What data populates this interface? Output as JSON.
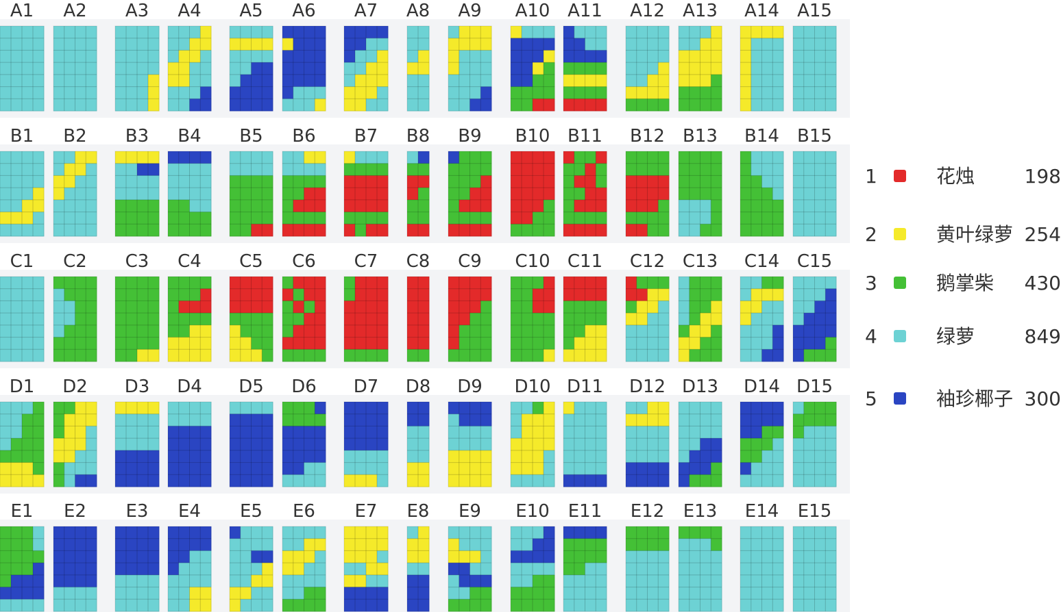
{
  "colors": {
    "1": "#e32a2a",
    "2": "#f5ea2a",
    "3": "#44c036",
    "4": "#6dd2d4",
    "5": "#2a45c2",
    "grid_line": "#58b8bb",
    "band": "#f3f4f6"
  },
  "legend": [
    {
      "code": "1",
      "name": "花烛",
      "count": "198"
    },
    {
      "code": "2",
      "name": "黄叶绿萝",
      "count": "254"
    },
    {
      "code": "3",
      "name": "鹅掌柴",
      "count": "430"
    },
    {
      "code": "4",
      "name": "绿萝",
      "count": "849"
    },
    {
      "code": "5",
      "name": "袖珍椰子",
      "count": "300"
    }
  ],
  "panels": {
    "A1": [
      "4444",
      "4444",
      "4444",
      "4444",
      "4444",
      "4444",
      "4444"
    ],
    "A2": [
      "4444",
      "4444",
      "4444",
      "4444",
      "4444",
      "4444",
      "4444"
    ],
    "A3": [
      "4444",
      "4444",
      "4444",
      "4444",
      "4442",
      "4442",
      "4442"
    ],
    "A4": [
      "4442",
      "4422",
      "4224",
      "2244",
      "2244",
      "4445",
      "4455"
    ],
    "A5": [
      "4444",
      "2222",
      "4444",
      "4455",
      "4555",
      "5555",
      "5555"
    ],
    "A6": [
      "5555",
      "2555",
      "5555",
      "5555",
      "5555",
      "5444",
      "4442"
    ],
    "A7": [
      "5555",
      "5544",
      "5442",
      "4422",
      "4222",
      "2224",
      "2244"
    ],
    "A8": [
      "44",
      "44",
      "42",
      "22",
      "44",
      "44",
      "44"
    ],
    "A9": [
      "4222",
      "2222",
      "2444",
      "2444",
      "4444",
      "4445",
      "4455"
    ],
    "A10": [
      "2444",
      "5555",
      "5552",
      "5523",
      "5533",
      "3333",
      "3311"
    ],
    "A11": [
      "5444",
      "5544",
      "5555",
      "3333",
      "2222",
      "3333",
      "1111"
    ],
    "A12": [
      "4444",
      "4444",
      "4444",
      "4442",
      "4422",
      "2222",
      "3333"
    ],
    "A13": [
      "4442",
      "4422",
      "2222",
      "2222",
      "2223",
      "3333",
      "3333"
    ],
    "A14": [
      "2222",
      "2444",
      "2444",
      "2444",
      "2444",
      "2444",
      "2444"
    ],
    "A15": [
      "4444",
      "4444",
      "4444",
      "4444",
      "4444",
      "4444",
      "4444"
    ],
    "B1": [
      "4444",
      "4444",
      "4444",
      "4442",
      "4422",
      "2224",
      "4444"
    ],
    "B2": [
      "4422",
      "4224",
      "2244",
      "2444",
      "4444",
      "4444",
      "4444"
    ],
    "B3": [
      "2222",
      "4455",
      "4444",
      "4444",
      "3333",
      "3333",
      "3333"
    ],
    "B4": [
      "5555",
      "4444",
      "4444",
      "4444",
      "3344",
      "3333",
      "3333"
    ],
    "B5": [
      "4444",
      "4444",
      "3333",
      "3333",
      "3333",
      "3333",
      "3311"
    ],
    "B6": [
      "4422",
      "4444",
      "3333",
      "3311",
      "3111",
      "3333",
      "1111"
    ],
    "B7": [
      "2444",
      "3333",
      "1111",
      "1111",
      "1111",
      "3333",
      "1311"
    ],
    "B8": [
      "45",
      "33",
      "11",
      "13",
      "33",
      "33",
      "11"
    ],
    "B9": [
      "5333",
      "3333",
      "3331",
      "3311",
      "3111",
      "3333",
      "1111"
    ],
    "B10": [
      "1111",
      "1111",
      "1111",
      "1111",
      "1113",
      "1133",
      "3333"
    ],
    "B11": [
      "1331",
      "3313",
      "3113",
      "3311",
      "3111",
      "3333",
      "1111"
    ],
    "B12": [
      "3333",
      "3333",
      "1111",
      "1111",
      "1113",
      "3333",
      "1133"
    ],
    "B13": [
      "3333",
      "3333",
      "3333",
      "3333",
      "4443",
      "4443",
      "4433"
    ],
    "B14": [
      "3444",
      "3444",
      "3344",
      "3334",
      "3333",
      "3333",
      "3333"
    ],
    "B15": [
      "4444",
      "4444",
      "4444",
      "4444",
      "4444",
      "4444",
      "4444"
    ],
    "C1": [
      "4444",
      "4444",
      "4444",
      "4444",
      "4444",
      "4444",
      "4444"
    ],
    "C2": [
      "3333",
      "4333",
      "4433",
      "4433",
      "4333",
      "3333",
      "3333"
    ],
    "C3": [
      "3333",
      "3333",
      "3333",
      "3333",
      "3333",
      "3333",
      "3322"
    ],
    "C4": [
      "3333",
      "3331",
      "3111",
      "3333",
      "3322",
      "2222",
      "2222"
    ],
    "C5": [
      "1111",
      "1111",
      "1111",
      "3333",
      "2333",
      "2233",
      "2223"
    ],
    "C6": [
      "3111",
      "1311",
      "3131",
      "3311",
      "3111",
      "1111",
      "3333"
    ],
    "C7": [
      "3111",
      "3111",
      "1111",
      "1111",
      "1111",
      "1111",
      "3333"
    ],
    "C8": [
      "11",
      "11",
      "11",
      "11",
      "11",
      "11",
      "33"
    ],
    "C9": [
      "1111",
      "1111",
      "1113",
      "1133",
      "1333",
      "1333",
      "3333"
    ],
    "C10": [
      "3331",
      "3311",
      "3311",
      "3333",
      "3333",
      "3333",
      "3332"
    ],
    "C11": [
      "1111",
      "1111",
      "3333",
      "3333",
      "3322",
      "3222",
      "2222"
    ],
    "C12": [
      "1333",
      "1122",
      "3224",
      "2244",
      "4444",
      "4444",
      "4444"
    ],
    "C13": [
      "4333",
      "4333",
      "4332",
      "4322",
      "3223",
      "2233",
      "2333"
    ],
    "C14": [
      "4433",
      "4222",
      "2244",
      "2444",
      "4445",
      "4445",
      "4455"
    ],
    "C15": [
      "4444",
      "4445",
      "4455",
      "4555",
      "5555",
      "5553",
      "5333"
    ],
    "D1": [
      "4443",
      "4433",
      "4433",
      "4333",
      "3333",
      "2223",
      "2222"
    ],
    "D2": [
      "3322",
      "3222",
      "3224",
      "2224",
      "2244",
      "3444",
      "3455"
    ],
    "D3": [
      "2222",
      "4444",
      "4444",
      "4444",
      "5555",
      "5555",
      "5555"
    ],
    "D4": [
      "4444",
      "4444",
      "5555",
      "5555",
      "5555",
      "5555",
      "5555"
    ],
    "D5": [
      "4444",
      "5555",
      "5555",
      "5555",
      "5555",
      "5555",
      "5555"
    ],
    "D6": [
      "3335",
      "3333",
      "5555",
      "5555",
      "5555",
      "5544",
      "4444"
    ],
    "D7": [
      "5555",
      "5555",
      "5555",
      "5555",
      "4444",
      "4444",
      "2224"
    ],
    "D8": [
      "55",
      "55",
      "44",
      "44",
      "44",
      "22",
      "22"
    ],
    "D9": [
      "5555",
      "4555",
      "4444",
      "4444",
      "2222",
      "2222",
      "2222"
    ],
    "D10": [
      "4432",
      "4222",
      "4222",
      "2222",
      "2224",
      "2224",
      "4444"
    ],
    "D11": [
      "2444",
      "4444",
      "4444",
      "4444",
      "4444",
      "4444",
      "5555"
    ],
    "D12": [
      "4422",
      "2222",
      "4444",
      "4444",
      "4444",
      "5555",
      "5555"
    ],
    "D13": [
      "4444",
      "4444",
      "4444",
      "4455",
      "4555",
      "5553",
      "5333"
    ],
    "D14": [
      "5555",
      "5555",
      "5533",
      "3334",
      "3344",
      "5444",
      "4444"
    ],
    "D15": [
      "4333",
      "3333",
      "3444",
      "4444",
      "4444",
      "4444",
      "4444"
    ],
    "E1": [
      "3334",
      "3334",
      "3333",
      "3335",
      "3555",
      "5555",
      "4444"
    ],
    "E2": [
      "5555",
      "5555",
      "5555",
      "5555",
      "5555",
      "4444",
      "4444"
    ],
    "E3": [
      "5555",
      "5555",
      "5555",
      "5555",
      "4444",
      "4444",
      "4444"
    ],
    "E4": [
      "5555",
      "5555",
      "5544",
      "5444",
      "4444",
      "4422",
      "4422"
    ],
    "E5": [
      "5444",
      "4444",
      "4455",
      "4442",
      "4422",
      "2244",
      "2444"
    ],
    "E6": [
      "4444",
      "4422",
      "2224",
      "2244",
      "4444",
      "4433",
      "3333"
    ],
    "E7": [
      "2222",
      "2222",
      "2224",
      "4422",
      "2244",
      "5555",
      "5555"
    ],
    "E8": [
      "42",
      "22",
      "22",
      "44",
      "55",
      "55",
      "55"
    ],
    "E9": [
      "4444",
      "2444",
      "2224",
      "5544",
      "4555",
      "4433",
      "3333"
    ],
    "E10": [
      "4445",
      "4455",
      "5555",
      "4444",
      "4433",
      "3333",
      "3333"
    ],
    "E11": [
      "5555",
      "3333",
      "3333",
      "3344",
      "4444",
      "4444",
      "4444"
    ],
    "E12": [
      "3333",
      "3333",
      "4444",
      "4444",
      "4444",
      "4444",
      "4444"
    ],
    "E13": [
      "3333",
      "4443",
      "4444",
      "4444",
      "4444",
      "4444",
      "4444"
    ],
    "E14": [
      "4444",
      "4444",
      "4444",
      "4444",
      "4444",
      "4444",
      "4444"
    ],
    "E15": [
      "4444",
      "4444",
      "4444",
      "4444",
      "4444",
      "4444",
      "4444"
    ]
  }
}
